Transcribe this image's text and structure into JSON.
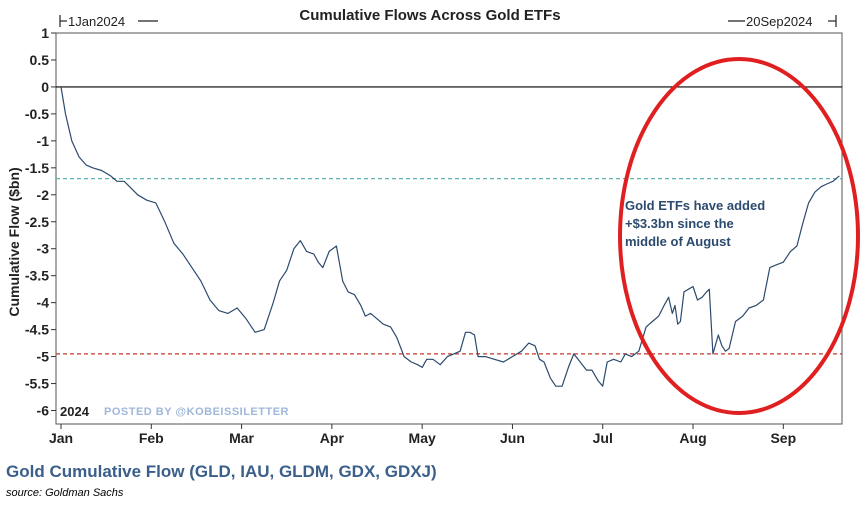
{
  "chart_data": {
    "type": "line",
    "title": "Cumulative Flows Across Gold ETFs",
    "start_label": "1Jan2024",
    "end_label": "20Sep2024",
    "ylabel": "Cumulative Flow ($bn)",
    "xlabel": "",
    "ylim": [
      -6.25,
      1
    ],
    "yticks": [
      1,
      0.5,
      0,
      -0.5,
      -1,
      -1.5,
      -2,
      -2.5,
      -3,
      -3.5,
      -4,
      -4.5,
      -5,
      -5.5,
      -6
    ],
    "ytick_labels": [
      "1",
      "0.5",
      "0",
      "-0.5",
      "-1",
      "-1.5",
      "-2",
      "-2.5",
      "-3",
      "-3.5",
      "-4",
      "-4.5",
      "-5",
      "-5.5",
      "-6"
    ],
    "xlim": [
      0,
      8.65
    ],
    "month_ticks": [
      0,
      1,
      2,
      3,
      4,
      5,
      6,
      7,
      8
    ],
    "month_labels": [
      "Jan",
      "Feb",
      "Mar",
      "Apr",
      "May",
      "Jun",
      "Jul",
      "Aug",
      "Sep"
    ],
    "year_label": "2024",
    "watermark": "POSTED BY @KOBEISSILETTER",
    "reference_lines": [
      {
        "y": 0,
        "style": "solid",
        "color": "#000000"
      },
      {
        "y": -1.7,
        "style": "dashed",
        "color": "#5ab4b0"
      },
      {
        "y": -4.95,
        "style": "dashed",
        "color": "#c0392b"
      }
    ],
    "series": [
      {
        "name": "Gold Cumulative Flow",
        "color": "#2c4a6e",
        "x": [
          0.0,
          0.05,
          0.12,
          0.2,
          0.28,
          0.35,
          0.45,
          0.55,
          0.62,
          0.7,
          0.76,
          0.85,
          0.95,
          1.05,
          1.15,
          1.25,
          1.35,
          1.45,
          1.55,
          1.65,
          1.75,
          1.85,
          1.95,
          2.05,
          2.15,
          2.25,
          2.35,
          2.42,
          2.5,
          2.58,
          2.65,
          2.72,
          2.8,
          2.85,
          2.9,
          2.97,
          3.05,
          3.12,
          3.18,
          3.25,
          3.32,
          3.37,
          3.43,
          3.5,
          3.57,
          3.65,
          3.72,
          3.8,
          3.88,
          3.95,
          4.0,
          4.05,
          4.12,
          4.2,
          4.28,
          4.35,
          4.42,
          4.48,
          4.53,
          4.58,
          4.62,
          4.7,
          4.8,
          4.9,
          5.0,
          5.1,
          5.18,
          5.25,
          5.3,
          5.35,
          5.42,
          5.48,
          5.55,
          5.62,
          5.68,
          5.75,
          5.82,
          5.88,
          5.95,
          6.0,
          6.05,
          6.12,
          6.2,
          6.25,
          6.32,
          6.4,
          6.48,
          6.55,
          6.62,
          6.68,
          6.73,
          6.77,
          6.8,
          6.83,
          6.86,
          6.9,
          6.95,
          7.0,
          7.05,
          7.1,
          7.15,
          7.18,
          7.22,
          7.28,
          7.32,
          7.36,
          7.4,
          7.47,
          7.55,
          7.62,
          7.7,
          7.78,
          7.85,
          7.92,
          8.0,
          8.08,
          8.15,
          8.22,
          8.28,
          8.35,
          8.42,
          8.48,
          8.55,
          8.62
        ],
        "values": [
          0.0,
          -0.5,
          -1.0,
          -1.3,
          -1.45,
          -1.5,
          -1.55,
          -1.65,
          -1.75,
          -1.75,
          -1.85,
          -2.0,
          -2.1,
          -2.15,
          -2.5,
          -2.9,
          -3.1,
          -3.35,
          -3.6,
          -3.95,
          -4.15,
          -4.2,
          -4.1,
          -4.3,
          -4.55,
          -4.5,
          -4.0,
          -3.6,
          -3.4,
          -3.0,
          -2.85,
          -3.05,
          -3.1,
          -3.25,
          -3.35,
          -3.05,
          -2.95,
          -3.6,
          -3.8,
          -3.85,
          -4.05,
          -4.25,
          -4.2,
          -4.3,
          -4.4,
          -4.45,
          -4.65,
          -5.0,
          -5.1,
          -5.15,
          -5.2,
          -5.05,
          -5.05,
          -5.15,
          -5.0,
          -4.95,
          -4.9,
          -4.55,
          -4.55,
          -4.6,
          -5.0,
          -5.0,
          -5.05,
          -5.1,
          -5.0,
          -4.9,
          -4.75,
          -4.8,
          -5.05,
          -5.1,
          -5.4,
          -5.55,
          -5.55,
          -5.2,
          -4.95,
          -5.1,
          -5.25,
          -5.25,
          -5.45,
          -5.55,
          -5.1,
          -5.05,
          -5.1,
          -4.95,
          -5.0,
          -4.9,
          -4.45,
          -4.35,
          -4.25,
          -4.05,
          -3.9,
          -4.2,
          -4.05,
          -4.4,
          -4.35,
          -3.8,
          -3.75,
          -3.7,
          -3.95,
          -3.9,
          -3.8,
          -3.75,
          -4.95,
          -4.6,
          -4.8,
          -4.9,
          -4.85,
          -4.35,
          -4.25,
          -4.1,
          -4.05,
          -3.95,
          -3.35,
          -3.3,
          -3.25,
          -3.05,
          -2.95,
          -2.5,
          -2.15,
          -1.95,
          -1.85,
          -1.8,
          -1.75,
          -1.65
        ]
      }
    ],
    "annotations": [
      {
        "lines": [
          "Gold ETFs have added",
          "+$3.3bn since the",
          "middle of August"
        ],
        "color": "#2c4a6e"
      }
    ],
    "highlight_ellipse": {
      "color": "#e02020"
    }
  },
  "caption": "Gold Cumulative Flow (GLD, IAU, GLDM, GDX, GDXJ)",
  "source": "source: Goldman Sachs"
}
